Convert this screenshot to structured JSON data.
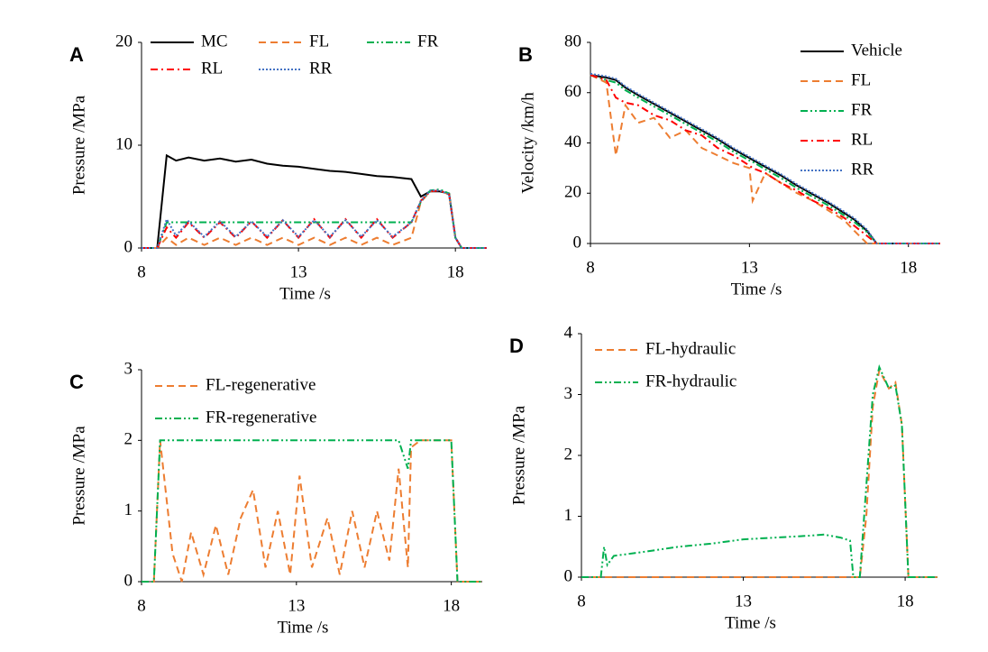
{
  "chart_data": [
    {
      "type": "line",
      "label": "A",
      "x_label": "Time /s",
      "y_label": "Pressure /MPa",
      "legend": "top",
      "x": [
        8,
        8.5,
        8.8,
        9.1,
        9.5,
        10,
        10.5,
        11,
        11.5,
        12,
        12.5,
        13,
        13.5,
        14,
        14.5,
        15,
        15.5,
        16,
        16.6,
        16.9,
        17.2,
        17.5,
        17.8,
        18,
        18.2,
        18.5,
        19
      ],
      "xlim": [
        8,
        19
      ],
      "xticks": [
        8,
        13,
        18
      ],
      "ylim": [
        0,
        20
      ],
      "yticks": [
        0,
        10,
        20
      ],
      "series": [
        {
          "name": "MC",
          "color": "#000000",
          "dash": "solid",
          "values": [
            0,
            0,
            9,
            8.5,
            8.8,
            8.5,
            8.7,
            8.4,
            8.6,
            8.2,
            8,
            7.9,
            7.7,
            7.5,
            7.4,
            7.2,
            7,
            6.9,
            6.7,
            5,
            5.5,
            5.5,
            5.3,
            1,
            0,
            0,
            0
          ]
        },
        {
          "name": "FL",
          "color": "#ED7D31",
          "dash": "dashed",
          "values": [
            0,
            0,
            1,
            0.3,
            1,
            0.3,
            1,
            0.3,
            1,
            0.3,
            1,
            0.3,
            1,
            0.3,
            1,
            0.3,
            1,
            0.3,
            1,
            4.5,
            5.5,
            5.6,
            5.2,
            1,
            0,
            0,
            0
          ]
        },
        {
          "name": "FR",
          "color": "#00B050",
          "dash": "dashdotdot",
          "values": [
            0,
            0,
            2.5,
            2.5,
            2.5,
            2.5,
            2.5,
            2.5,
            2.5,
            2.5,
            2.5,
            2.5,
            2.5,
            2.5,
            2.5,
            2.5,
            2.5,
            2.5,
            2.5,
            4.5,
            5.6,
            5.7,
            5.3,
            1,
            0,
            0,
            0
          ]
        },
        {
          "name": "RL",
          "color": "#FF0000",
          "dash": "dashdot",
          "values": [
            0,
            0,
            2,
            1,
            2.5,
            1,
            2.5,
            1,
            2.6,
            1,
            2.7,
            1,
            2.8,
            1,
            2.8,
            1,
            2.8,
            1,
            2.5,
            4.6,
            5.5,
            5.6,
            5.2,
            1,
            0,
            0,
            0
          ]
        },
        {
          "name": "RR",
          "color": "#4472C4",
          "dash": "dotted",
          "values": [
            0,
            0,
            2.8,
            1.2,
            2.6,
            1.1,
            2.6,
            1.1,
            2.6,
            1.1,
            2.7,
            1.1,
            2.7,
            1.1,
            2.7,
            1.1,
            2.7,
            1.1,
            2.5,
            4.6,
            5.6,
            5.6,
            5.2,
            1,
            0,
            0,
            0
          ]
        }
      ]
    },
    {
      "type": "line",
      "label": "B",
      "x_label": "Time /s",
      "y_label": "Velocity /km/h",
      "legend": "upper right",
      "x": [
        8,
        8.5,
        8.8,
        9.1,
        9.5,
        10,
        10.5,
        11,
        11.5,
        12,
        12.5,
        13,
        13.1,
        13.5,
        14,
        14.5,
        15,
        15.5,
        16,
        16.3,
        16.7,
        17,
        18,
        19
      ],
      "xlim": [
        8,
        19
      ],
      "xticks": [
        8,
        13,
        18
      ],
      "ylim": [
        0,
        80
      ],
      "yticks": [
        0,
        20,
        40,
        60,
        80
      ],
      "series": [
        {
          "name": "Vehicle",
          "color": "#000000",
          "dash": "solid",
          "values": [
            67,
            66,
            65,
            62,
            59,
            55.5,
            52,
            48.5,
            45,
            41.5,
            37.5,
            34,
            33.3,
            30.5,
            27,
            23,
            19.5,
            16,
            12,
            9.5,
            5,
            0,
            0,
            0
          ]
        },
        {
          "name": "FL",
          "color": "#ED7D31",
          "dash": "dashed",
          "values": [
            67,
            64,
            35,
            55,
            48,
            50,
            42,
            45,
            38,
            35,
            32,
            30,
            17,
            28,
            24,
            20,
            17,
            13,
            9,
            5,
            0,
            0,
            0,
            0
          ]
        },
        {
          "name": "FR",
          "color": "#00B050",
          "dash": "dashdotdot",
          "values": [
            67,
            65,
            64,
            61,
            58,
            54.5,
            51,
            47.5,
            44,
            40.5,
            36.5,
            33,
            32.5,
            29.5,
            26,
            22,
            18.5,
            15,
            11,
            8.5,
            4.5,
            0,
            0,
            0
          ]
        },
        {
          "name": "RL",
          "color": "#FF0000",
          "dash": "dashdot",
          "values": [
            67,
            65,
            58,
            56,
            55,
            51,
            49,
            45,
            43,
            38,
            35,
            31,
            30,
            28,
            24,
            21,
            17,
            14,
            10,
            7,
            3,
            0,
            0,
            0
          ]
        },
        {
          "name": "RR",
          "color": "#4472C4",
          "dash": "dotted",
          "values": [
            67.5,
            66.5,
            65.5,
            62.5,
            59.5,
            56,
            52.5,
            49,
            45.5,
            42,
            38,
            34.5,
            33.8,
            31,
            27.5,
            23.5,
            20,
            16.5,
            12.5,
            10,
            5.5,
            0,
            0,
            0
          ]
        }
      ]
    },
    {
      "type": "line",
      "label": "C",
      "x_label": "Time /s",
      "y_label": "Pressure /MPa",
      "legend": "upper left",
      "x": [
        8,
        8.4,
        8.6,
        9,
        9.3,
        9.6,
        10,
        10.4,
        10.8,
        11.2,
        11.6,
        12,
        12.4,
        12.8,
        13.1,
        13.5,
        14,
        14.4,
        14.8,
        15.2,
        15.6,
        16,
        16.3,
        16.6,
        16.7,
        17,
        17.5,
        18,
        18.2,
        18.5,
        19
      ],
      "xlim": [
        8,
        19
      ],
      "xticks": [
        8,
        13,
        18
      ],
      "ylim": [
        0,
        3
      ],
      "yticks": [
        0,
        1,
        2,
        3
      ],
      "series": [
        {
          "name": "FL-regenerative",
          "color": "#ED7D31",
          "dash": "dashed",
          "values": [
            0,
            0,
            2,
            0.4,
            0,
            0.7,
            0.1,
            0.8,
            0.1,
            0.9,
            1.3,
            0.2,
            1,
            0.1,
            1.5,
            0.2,
            0.9,
            0.1,
            1,
            0.2,
            1,
            0.3,
            1.6,
            0.2,
            1.9,
            2,
            2,
            2,
            0,
            0,
            0
          ]
        },
        {
          "name": "FR-regenerative",
          "color": "#00B050",
          "dash": "dashdotdot",
          "values": [
            0,
            0,
            2,
            2,
            2,
            2,
            2,
            2,
            2,
            2,
            2,
            2,
            2,
            2,
            2,
            2,
            2,
            2,
            2,
            2,
            2,
            2,
            2,
            1.6,
            2,
            2,
            2,
            2,
            0,
            0,
            0
          ]
        }
      ]
    },
    {
      "type": "line",
      "label": "D",
      "x_label": "Time /s",
      "y_label": "Pressure /MPa",
      "legend": "upper left",
      "x": [
        8,
        8.6,
        8.7,
        8.8,
        9,
        10,
        11,
        12,
        13,
        14,
        15,
        15.5,
        16,
        16.3,
        16.4,
        16.6,
        16.8,
        17,
        17.2,
        17.5,
        17.7,
        17.9,
        18.1,
        18.5,
        19
      ],
      "xlim": [
        8,
        19
      ],
      "xticks": [
        8,
        13,
        18
      ],
      "ylim": [
        0,
        4
      ],
      "yticks": [
        0,
        1,
        2,
        3,
        4
      ],
      "series": [
        {
          "name": "FL-hydraulic",
          "color": "#ED7D31",
          "dash": "dashed",
          "values": [
            0,
            0,
            0,
            0,
            0,
            0,
            0,
            0,
            0,
            0,
            0,
            0,
            0,
            0,
            0,
            0,
            1,
            2.8,
            3.4,
            3.1,
            3.2,
            2.5,
            0,
            0,
            0
          ]
        },
        {
          "name": "FR-hydraulic",
          "color": "#00B050",
          "dash": "dashdotdot",
          "values": [
            0,
            0,
            0.5,
            0.2,
            0.35,
            0.42,
            0.5,
            0.55,
            0.62,
            0.65,
            0.68,
            0.7,
            0.65,
            0.6,
            0,
            0,
            1.5,
            3,
            3.45,
            3.1,
            3.15,
            2.5,
            0,
            0,
            0
          ]
        }
      ]
    }
  ]
}
